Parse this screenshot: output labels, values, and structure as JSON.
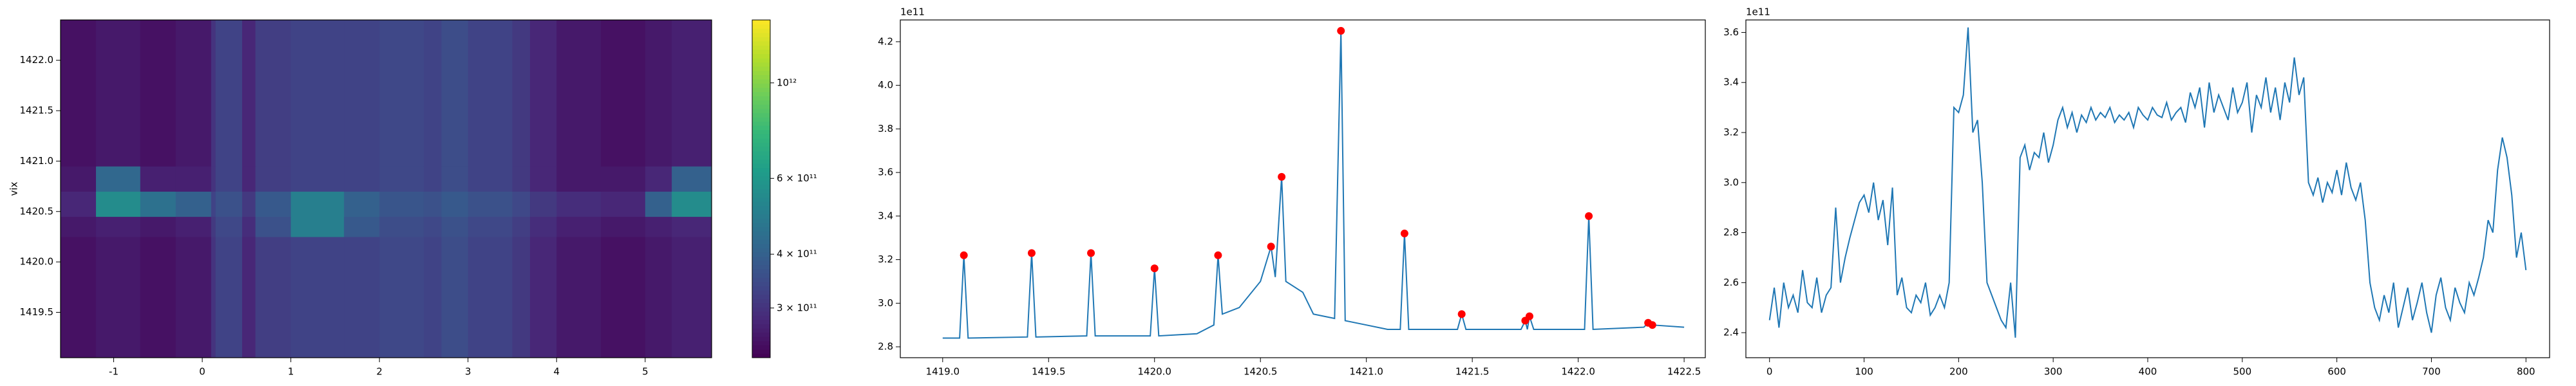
{
  "chart_data": [
    {
      "type": "heatmap",
      "y_label": "vix",
      "cmap": "viridis",
      "cscale": "log",
      "xlim": [
        -1.6,
        5.75
      ],
      "xticks": [
        -1,
        0,
        1,
        2,
        3,
        4,
        5
      ],
      "ylim": [
        1419.05,
        1422.4
      ],
      "yticks": [
        {
          "value": 1419.5,
          "label": "1419.5"
        },
        {
          "value": 1420.0,
          "label": "1420.0"
        },
        {
          "value": 1420.5,
          "label": "1420.5"
        },
        {
          "value": 1421.0,
          "label": "1421.0"
        },
        {
          "value": 1421.5,
          "label": "1421.5"
        },
        {
          "value": 1422.0,
          "label": "1422.0"
        }
      ],
      "x_edges": [
        -1.6,
        -1.2,
        -0.7,
        -0.3,
        0.1,
        0.15,
        0.45,
        0.6,
        1.0,
        1.6,
        2.0,
        2.5,
        2.7,
        3.0,
        3.5,
        3.7,
        4.0,
        4.5,
        5.0,
        5.3,
        5.75
      ],
      "y_edges": [
        1419.05,
        1420.25,
        1420.45,
        1420.7,
        1420.95,
        1422.4
      ],
      "z": [
        [
          250000000000.0,
          260000000000.0,
          250000000000.0,
          260000000000.0,
          300000000000.0,
          330000000000.0,
          280000000000.0,
          320000000000.0,
          330000000000.0,
          330000000000.0,
          340000000000.0,
          330000000000.0,
          350000000000.0,
          330000000000.0,
          310000000000.0,
          280000000000.0,
          260000000000.0,
          250000000000.0,
          260000000000.0,
          270000000000.0
        ],
        [
          260000000000.0,
          270000000000.0,
          260000000000.0,
          270000000000.0,
          310000000000.0,
          340000000000.0,
          290000000000.0,
          360000000000.0,
          500000000000.0,
          380000000000.0,
          350000000000.0,
          340000000000.0,
          360000000000.0,
          340000000000.0,
          320000000000.0,
          290000000000.0,
          270000000000.0,
          260000000000.0,
          270000000000.0,
          280000000000.0
        ],
        [
          280000000000.0,
          550000000000.0,
          450000000000.0,
          400000000000.0,
          330000000000.0,
          360000000000.0,
          310000000000.0,
          380000000000.0,
          500000000000.0,
          400000000000.0,
          370000000000.0,
          360000000000.0,
          380000000000.0,
          360000000000.0,
          340000000000.0,
          310000000000.0,
          290000000000.0,
          280000000000.0,
          400000000000.0,
          550000000000.0
        ],
        [
          260000000000.0,
          420000000000.0,
          270000000000.0,
          270000000000.0,
          300000000000.0,
          330000000000.0,
          280000000000.0,
          320000000000.0,
          330000000000.0,
          330000000000.0,
          340000000000.0,
          330000000000.0,
          350000000000.0,
          330000000000.0,
          310000000000.0,
          280000000000.0,
          260000000000.0,
          260000000000.0,
          280000000000.0,
          400000000000.0
        ],
        [
          250000000000.0,
          260000000000.0,
          250000000000.0,
          260000000000.0,
          300000000000.0,
          330000000000.0,
          280000000000.0,
          320000000000.0,
          330000000000.0,
          330000000000.0,
          340000000000.0,
          330000000000.0,
          350000000000.0,
          330000000000.0,
          310000000000.0,
          280000000000.0,
          260000000000.0,
          250000000000.0,
          260000000000.0,
          270000000000.0
        ]
      ],
      "clim": [
        230000000000.0,
        1400000000000.0
      ],
      "cticks": [
        {
          "value": 300000000000.0,
          "label": "3 × 10¹¹"
        },
        {
          "value": 400000000000.0,
          "label": "4 × 10¹¹"
        },
        {
          "value": 600000000000.0,
          "label": "6 × 10¹¹"
        },
        {
          "value": 1000000000000.0,
          "label": "10¹²"
        }
      ]
    },
    {
      "type": "line",
      "y_offset_label": "1e11",
      "xlim": [
        1418.8,
        1422.6
      ],
      "xticks": [
        {
          "value": 1419.0,
          "label": "1419.0"
        },
        {
          "value": 1419.5,
          "label": "1419.5"
        },
        {
          "value": 1420.0,
          "label": "1420.0"
        },
        {
          "value": 1420.5,
          "label": "1420.5"
        },
        {
          "value": 1421.0,
          "label": "1421.0"
        },
        {
          "value": 1421.5,
          "label": "1421.5"
        },
        {
          "value": 1422.0,
          "label": "1422.0"
        },
        {
          "value": 1422.5,
          "label": "1422.5"
        }
      ],
      "ylim": [
        2.75,
        4.3
      ],
      "yticks": [
        2.8,
        {
          "value": 3.0,
          "label": "3.0"
        },
        3.2,
        3.4,
        3.6,
        3.8,
        {
          "value": 4.0,
          "label": "4.0"
        },
        4.2
      ],
      "series": [
        {
          "type": "line",
          "color": "#1f77b4",
          "x": [
            1419.0,
            1419.08,
            1419.1,
            1419.12,
            1419.4,
            1419.42,
            1419.44,
            1419.68,
            1419.7,
            1419.72,
            1419.98,
            1420.0,
            1420.02,
            1420.2,
            1420.28,
            1420.3,
            1420.32,
            1420.4,
            1420.5,
            1420.55,
            1420.57,
            1420.6,
            1420.62,
            1420.7,
            1420.75,
            1420.85,
            1420.88,
            1420.9,
            1421.0,
            1421.1,
            1421.16,
            1421.18,
            1421.2,
            1421.43,
            1421.45,
            1421.47,
            1421.73,
            1421.75,
            1421.76,
            1421.77,
            1421.79,
            1422.03,
            1422.05,
            1422.07,
            1422.31,
            1422.33,
            1422.35,
            1422.5
          ],
          "values": [
            2.84,
            2.84,
            3.22,
            2.84,
            2.845,
            3.23,
            2.845,
            2.85,
            3.23,
            2.85,
            2.85,
            3.16,
            2.85,
            2.86,
            2.9,
            3.22,
            2.95,
            2.98,
            3.1,
            3.26,
            3.12,
            3.58,
            3.1,
            3.05,
            2.95,
            2.93,
            4.25,
            2.92,
            2.9,
            2.88,
            2.88,
            3.32,
            2.88,
            2.88,
            2.95,
            2.88,
            2.88,
            2.92,
            2.88,
            2.94,
            2.88,
            2.88,
            3.4,
            2.88,
            2.89,
            2.91,
            2.9,
            2.89
          ]
        },
        {
          "type": "scatter",
          "color": "#ff0000",
          "x": [
            1419.1,
            1419.42,
            1419.7,
            1420.0,
            1420.3,
            1420.55,
            1420.6,
            1420.88,
            1421.18,
            1421.45,
            1421.75,
            1421.77,
            1422.05,
            1422.33,
            1422.35
          ],
          "values": [
            3.22,
            3.23,
            3.23,
            3.16,
            3.22,
            3.26,
            3.58,
            4.25,
            3.32,
            2.95,
            2.92,
            2.94,
            3.4,
            2.91,
            2.9
          ]
        }
      ]
    },
    {
      "type": "line",
      "y_offset_label": "1e11",
      "xlim": [
        -25,
        825
      ],
      "xticks": [
        0,
        100,
        200,
        300,
        400,
        500,
        600,
        700,
        800
      ],
      "ylim": [
        2.3,
        3.65
      ],
      "yticks": [
        2.4,
        2.6,
        2.8,
        {
          "value": 3.0,
          "label": "3.0"
        },
        3.2,
        3.4,
        3.6
      ],
      "series": [
        {
          "type": "line",
          "color": "#1f77b4",
          "x": [
            0,
            5,
            10,
            15,
            20,
            25,
            30,
            35,
            40,
            45,
            50,
            55,
            60,
            65,
            70,
            75,
            80,
            85,
            90,
            95,
            100,
            105,
            110,
            115,
            120,
            125,
            130,
            135,
            140,
            145,
            150,
            155,
            160,
            165,
            170,
            175,
            180,
            185,
            190,
            195,
            200,
            205,
            210,
            215,
            220,
            225,
            230,
            235,
            240,
            245,
            250,
            255,
            260,
            265,
            270,
            275,
            280,
            285,
            290,
            295,
            300,
            305,
            310,
            315,
            320,
            325,
            330,
            335,
            340,
            345,
            350,
            355,
            360,
            365,
            370,
            375,
            380,
            385,
            390,
            395,
            400,
            405,
            410,
            415,
            420,
            425,
            430,
            435,
            440,
            445,
            450,
            455,
            460,
            465,
            470,
            475,
            480,
            485,
            490,
            495,
            500,
            505,
            510,
            515,
            520,
            525,
            530,
            535,
            540,
            545,
            550,
            555,
            560,
            565,
            570,
            575,
            580,
            585,
            590,
            595,
            600,
            605,
            610,
            615,
            620,
            625,
            630,
            635,
            640,
            645,
            650,
            655,
            660,
            665,
            670,
            675,
            680,
            685,
            690,
            695,
            700,
            705,
            710,
            715,
            720,
            725,
            730,
            735,
            740,
            745,
            750,
            755,
            760,
            765,
            770,
            775,
            780,
            785,
            790,
            795,
            800
          ],
          "values": [
            2.45,
            2.58,
            2.42,
            2.6,
            2.5,
            2.55,
            2.48,
            2.65,
            2.52,
            2.5,
            2.62,
            2.48,
            2.55,
            2.58,
            2.9,
            2.6,
            2.7,
            2.78,
            2.85,
            2.92,
            2.95,
            2.88,
            3.0,
            2.85,
            2.93,
            2.75,
            2.98,
            2.55,
            2.62,
            2.5,
            2.48,
            2.55,
            2.52,
            2.6,
            2.47,
            2.5,
            2.55,
            2.5,
            2.6,
            3.3,
            3.28,
            3.35,
            3.62,
            3.2,
            3.25,
            3.0,
            2.6,
            2.55,
            2.5,
            2.45,
            2.42,
            2.6,
            2.38,
            3.1,
            3.15,
            3.05,
            3.12,
            3.1,
            3.2,
            3.08,
            3.15,
            3.25,
            3.3,
            3.22,
            3.28,
            3.2,
            3.27,
            3.24,
            3.3,
            3.25,
            3.28,
            3.26,
            3.3,
            3.24,
            3.27,
            3.25,
            3.28,
            3.22,
            3.3,
            3.27,
            3.25,
            3.3,
            3.27,
            3.26,
            3.32,
            3.25,
            3.28,
            3.3,
            3.24,
            3.36,
            3.3,
            3.38,
            3.22,
            3.4,
            3.28,
            3.35,
            3.3,
            3.25,
            3.38,
            3.28,
            3.32,
            3.4,
            3.2,
            3.35,
            3.3,
            3.42,
            3.28,
            3.38,
            3.25,
            3.4,
            3.32,
            3.5,
            3.35,
            3.42,
            3.0,
            2.95,
            3.02,
            2.92,
            3.0,
            2.96,
            3.05,
            2.95,
            3.08,
            2.98,
            2.93,
            3.0,
            2.85,
            2.6,
            2.5,
            2.45,
            2.55,
            2.48,
            2.6,
            2.42,
            2.5,
            2.58,
            2.45,
            2.52,
            2.6,
            2.48,
            2.4,
            2.55,
            2.62,
            2.5,
            2.45,
            2.58,
            2.52,
            2.48,
            2.6,
            2.55,
            2.62,
            2.7,
            2.85,
            2.8,
            3.05,
            3.18,
            3.1,
            2.95,
            2.7,
            2.8,
            2.65
          ]
        }
      ]
    }
  ]
}
